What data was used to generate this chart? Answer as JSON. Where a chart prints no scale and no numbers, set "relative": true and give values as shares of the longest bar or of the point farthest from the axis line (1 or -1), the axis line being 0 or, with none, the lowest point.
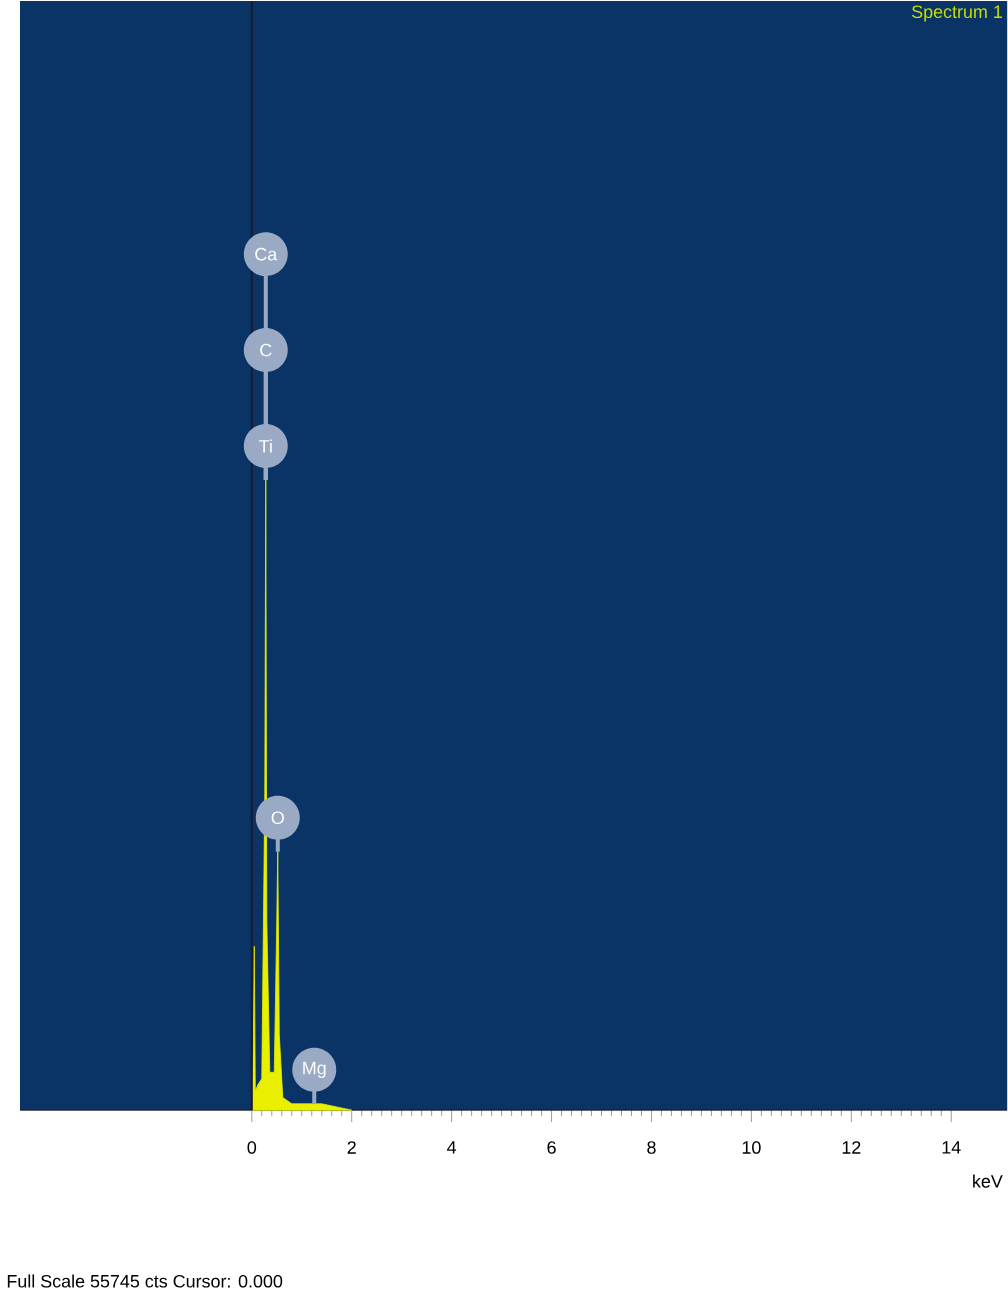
{
  "chart_data": {
    "type": "area",
    "title": "Spectrum 1",
    "xlabel": "keV",
    "relative": true,
    "x": [
      0.0,
      0.03,
      0.05,
      0.07,
      0.12,
      0.2,
      0.26,
      0.28,
      0.3,
      0.36,
      0.45,
      0.5,
      0.52,
      0.55,
      0.62,
      0.8,
      1.1,
      1.25,
      1.4,
      2.0
    ],
    "series": [
      {
        "color": "#e8f000",
        "values": [
          0.0,
          0.1,
          0.26,
          0.03,
          0.04,
          0.05,
          0.5,
          1.0,
          0.3,
          0.06,
          0.06,
          0.3,
          0.41,
          0.12,
          0.02,
          0.01,
          0.01,
          0.01,
          0.01,
          0.0
        ]
      }
    ],
    "xlim": [
      -4.64,
      15.12
    ],
    "xticks": [
      0,
      2,
      4,
      6,
      8,
      10,
      12,
      14
    ],
    "ref_lines": [
      {
        "axis": "x",
        "value": 0,
        "color": "#1a1a2a"
      }
    ],
    "annotations": [
      {
        "text": "Ca",
        "x": 0.28,
        "y": 1.0
      },
      {
        "text": "C",
        "x": 0.28,
        "y": 1.0
      },
      {
        "text": "Ti",
        "x": 0.28,
        "y": 1.0
      },
      {
        "text": "O",
        "x": 0.52,
        "y": 0.41
      },
      {
        "text": "Mg",
        "x": 1.25,
        "y": 0.01
      },
      "Full Scale 55745 cts Cursor: 0.000"
    ]
  }
}
